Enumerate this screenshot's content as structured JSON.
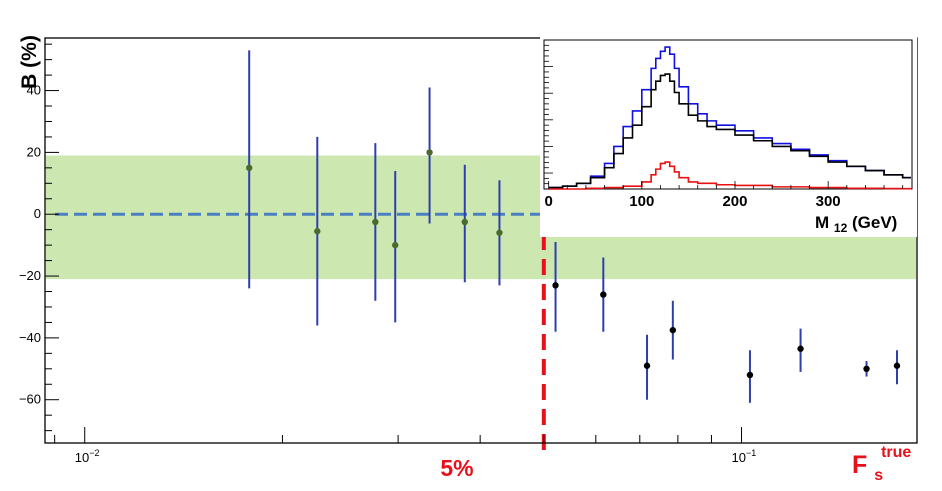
{
  "chart_data": [
    {
      "type": "scatter",
      "title": "",
      "ylabel": "B (%)",
      "xlabel": "F_s^true",
      "xlabel_main": "F",
      "xlabel_sub": "s",
      "xlabel_sup": "true",
      "xscale": "log",
      "xlim": [
        0.0087,
        0.185
      ],
      "ylim": [
        -74,
        57
      ],
      "x_tick_labels": [
        {
          "value": 0.01,
          "base": "10",
          "exp": "−2"
        },
        {
          "value": 0.1,
          "base": "10",
          "exp": "−1"
        }
      ],
      "y_ticks": [
        40,
        20,
        0,
        -20,
        -40,
        -60
      ],
      "y_tick_labels": [
        "40",
        "20",
        "0",
        "−20",
        "−40",
        "−60"
      ],
      "band": {
        "ymin": -21,
        "ymax": 19,
        "color": "#cce8b0"
      },
      "zero_line": {
        "y": 0,
        "color": "#4a7fc1",
        "style": "dashed"
      },
      "threshold": {
        "x": 0.05,
        "label": "5%",
        "color": "#e8101a"
      },
      "point_color_above": "#4a6a30",
      "point_color_below": "#000000",
      "error_bar_color": "#2f3faa",
      "points": [
        {
          "x": 0.0178,
          "y": 15,
          "ylo": -24,
          "yhi": 53
        },
        {
          "x": 0.0226,
          "y": -5.5,
          "ylo": -36,
          "yhi": 25
        },
        {
          "x": 0.0277,
          "y": -2.5,
          "ylo": -28,
          "yhi": 23
        },
        {
          "x": 0.0297,
          "y": -10,
          "ylo": -35,
          "yhi": 14
        },
        {
          "x": 0.0335,
          "y": 20,
          "ylo": -3,
          "yhi": 41
        },
        {
          "x": 0.0379,
          "y": -2.5,
          "ylo": -22,
          "yhi": 16
        },
        {
          "x": 0.0428,
          "y": -6,
          "ylo": -23,
          "yhi": 11
        },
        {
          "x": 0.0521,
          "y": -23,
          "ylo": -38,
          "yhi": -9
        },
        {
          "x": 0.0616,
          "y": -26,
          "ylo": -38,
          "yhi": -14
        },
        {
          "x": 0.0718,
          "y": -49,
          "ylo": -60,
          "yhi": -39
        },
        {
          "x": 0.0786,
          "y": -37.5,
          "ylo": -47,
          "yhi": -28
        },
        {
          "x": 0.103,
          "y": -52,
          "ylo": -61,
          "yhi": -44
        },
        {
          "x": 0.123,
          "y": -43.5,
          "ylo": -51,
          "yhi": -37
        },
        {
          "x": 0.155,
          "y": -50,
          "ylo": -52.5,
          "yhi": -47.5
        },
        {
          "x": 0.195,
          "y": -49,
          "ylo": -55,
          "yhi": -44
        }
      ]
    },
    {
      "type": "line",
      "title": "",
      "xlabel": "M12(GeV)",
      "xlabel_main": "M",
      "xlabel_sub": "12",
      "xlabel_unit": "(GeV)",
      "xlim": [
        -5,
        390
      ],
      "ylim": [
        0,
        105
      ],
      "x_tick_labels": [
        "0",
        "100",
        "200",
        "300"
      ],
      "x_ticks": [
        0,
        100,
        200,
        300
      ],
      "series": [
        {
          "color": "#1010e0",
          "x": [
            0,
            15,
            30,
            45,
            60,
            70,
            80,
            90,
            100,
            110,
            115,
            120,
            125,
            130,
            135,
            140,
            150,
            160,
            170,
            180,
            200,
            220,
            240,
            260,
            280,
            300,
            320,
            340,
            360,
            380
          ],
          "y": [
            1,
            2,
            4,
            9,
            18,
            30,
            44,
            55,
            70,
            85,
            92,
            97,
            100,
            95,
            85,
            72,
            60,
            53,
            48,
            45,
            41,
            36,
            32,
            28,
            24,
            20,
            16,
            13,
            10,
            8
          ]
        },
        {
          "color": "#000000",
          "x": [
            0,
            15,
            30,
            45,
            60,
            70,
            80,
            90,
            100,
            110,
            115,
            120,
            125,
            130,
            135,
            140,
            150,
            160,
            170,
            180,
            200,
            220,
            240,
            260,
            280,
            300,
            320,
            340,
            360,
            380
          ],
          "y": [
            1,
            2,
            4,
            8,
            15,
            25,
            36,
            45,
            58,
            70,
            76,
            80,
            81,
            76,
            68,
            60,
            52,
            48,
            44,
            42,
            38,
            34,
            30,
            27,
            23,
            19,
            16,
            13,
            10,
            8
          ]
        },
        {
          "color": "#e81010",
          "x": [
            0,
            40,
            60,
            80,
            100,
            110,
            115,
            120,
            125,
            130,
            135,
            140,
            150,
            160,
            180,
            200,
            240,
            280,
            320,
            360,
            380
          ],
          "y": [
            0,
            0.5,
            1,
            2,
            5,
            10,
            14,
            18,
            19,
            16,
            12,
            8,
            5,
            4,
            3,
            2.5,
            1.5,
            1,
            0.5,
            0.3,
            0.2
          ]
        }
      ]
    }
  ]
}
